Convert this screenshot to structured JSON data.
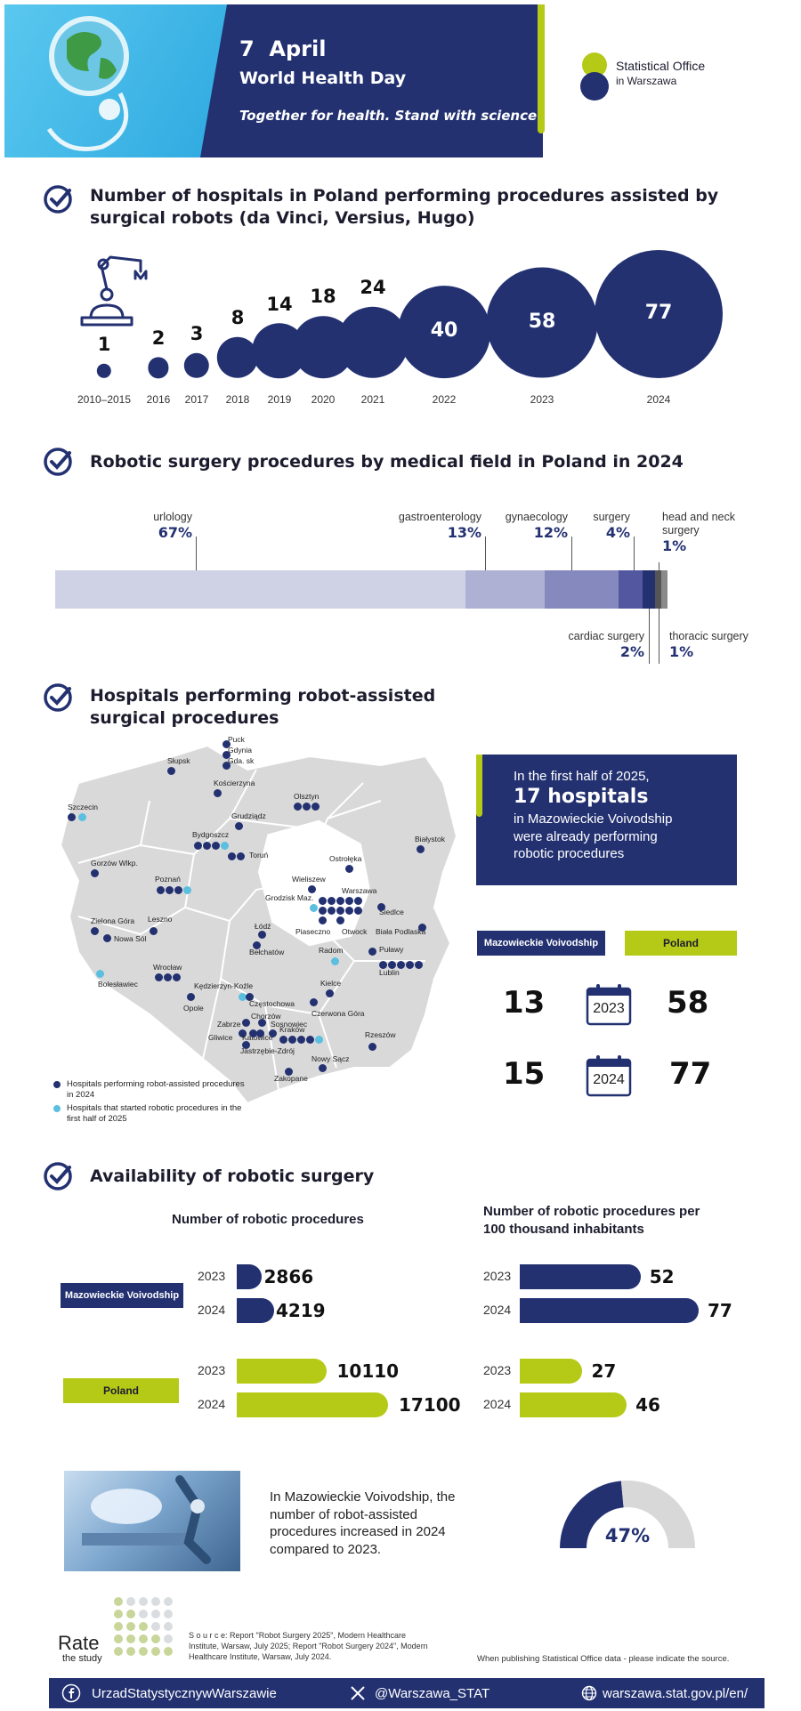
{
  "header": {
    "day": "7",
    "month": "April",
    "event": "World Health Day",
    "slogan": "Together for health. Stand with science",
    "office_line1": "Statistical Office",
    "office_line2": "in Warszawa"
  },
  "sections": {
    "hospitals_title": "Number of hospitals in Poland performing procedures assisted by surgical robots (da Vinci, Versius, Hugo)",
    "fields_title": "Robotic surgery procedures by medical field in Poland in 2024",
    "map_title": "Hospitals performing robot-assisted surgical procedures",
    "availability_title": "Availability of robotic surgery"
  },
  "chart_data": [
    {
      "type": "bubble",
      "categories": [
        "2010–2015",
        "2016",
        "2017",
        "2018",
        "2019",
        "2020",
        "2021",
        "2022",
        "2023",
        "2024"
      ],
      "values": [
        1,
        2,
        3,
        8,
        14,
        18,
        24,
        40,
        58,
        77
      ]
    },
    {
      "type": "bar",
      "stacked": true,
      "categories": [
        "urlology",
        "gastroenterology",
        "gynaecology",
        "surgery",
        "cardiac surgery",
        "head and neck surgery",
        "thoracic surgery"
      ],
      "values": [
        67,
        13,
        12,
        4,
        2,
        1,
        1
      ],
      "labels": [
        "67%",
        "13%",
        "12%",
        "4%",
        "2%",
        "1%",
        "1%"
      ],
      "colors": [
        "#cfd1e5",
        "#aeb1d3",
        "#8589bd",
        "#5357a0",
        "#233171",
        "#555555",
        "#8a8a8a"
      ]
    },
    {
      "type": "bar",
      "title": "Number of robotic procedures",
      "categories": [
        "2023",
        "2024"
      ],
      "series": [
        {
          "name": "Mazowieckie Voivodship",
          "values": [
            2866,
            4219
          ],
          "labels": [
            "2866",
            "4219"
          ]
        },
        {
          "name": "Poland",
          "values": [
            10110,
            17100
          ],
          "labels": [
            "10110",
            "17100"
          ]
        }
      ]
    },
    {
      "type": "bar",
      "title": "Number of robotic procedures per 100 thousand inhabitants",
      "categories": [
        "2023",
        "2024"
      ],
      "series": [
        {
          "name": "Mazowieckie Voivodship",
          "values": [
            52,
            77
          ],
          "labels": [
            "52",
            "77"
          ]
        },
        {
          "name": "Poland",
          "values": [
            27,
            46
          ],
          "labels": [
            "27",
            "46"
          ]
        }
      ]
    }
  ],
  "map": {
    "legend_navy": "Hospitals performing robot-assisted procedures in 2024",
    "legend_light": "Hospitals that started robotic procedures in the first half of 2025",
    "cities": [
      "Puck",
      "Gdynia",
      "Gda. sk",
      "Słupsk",
      "Kościerzyna",
      "Szczecin",
      "Olsztyn",
      "Grudziądz",
      "Białystok",
      "Bydgoszcz",
      "Toruń",
      "Ostrołęka",
      "Gorzów Wlkp.",
      "Poznań",
      "Wieliszew",
      "Warszawa",
      "Grodzisk Maz.",
      "Siedlce",
      "Zielona Góra",
      "Leszno",
      "Łódź",
      "Piaseczno",
      "Otwock",
      "Biała Podlaska",
      "Nowa Sól",
      "Bełchatów",
      "Radom",
      "Puławy",
      "Lublin",
      "Wrocław",
      "Bolesławiec",
      "Kędzierzyn-Koźle",
      "Kielce",
      "Częstochowa",
      "Opole",
      "Chorzów",
      "Czerwona Góra",
      "Zabrze",
      "Sosnowiec",
      "Gliwice",
      "Katowice",
      "Kraków",
      "Jastrzębie-Zdrój",
      "Rzeszów",
      "Nowy Sącz",
      "Zakopane"
    ]
  },
  "info_box": {
    "line1": "In the first half of 2025,",
    "highlight": "17 hospitals",
    "line3": "in Mazowieckie Voivodship were already performing robotic procedures"
  },
  "compare": {
    "left_label": "Mazowieckie Voivodship",
    "right_label": "Poland",
    "rows": [
      {
        "year": "2023",
        "left": "13",
        "right": "58"
      },
      {
        "year": "2024",
        "left": "15",
        "right": "77"
      }
    ]
  },
  "growth": {
    "text": "In Mazowieckie Voivodship, the number of robot-assisted procedures increased in 2024 compared to 2023.",
    "value": 47,
    "label": "47%"
  },
  "footer": {
    "rate1": "Rate",
    "rate2": "the study",
    "source": "S o u r c e: Report \"Robot Surgery 2025\", Modern Healthcare Institute, Warsaw, July 2025; Report \"Robot Surgery 2024\", Modern Healthcare Institute, Warsaw, July 2024.",
    "note": "When publishing Statistical Office data - please indicate the source.",
    "facebook": "UrzadStatystycznywWarszawie",
    "twitter": "@Warszawa_STAT",
    "web": "warszawa.stat.gov.pl/en/"
  },
  "colors": {
    "navy": "#233171",
    "lime": "#b5ca16",
    "light_blue": "#5bbfe0",
    "grey": "#d8d8d8"
  }
}
